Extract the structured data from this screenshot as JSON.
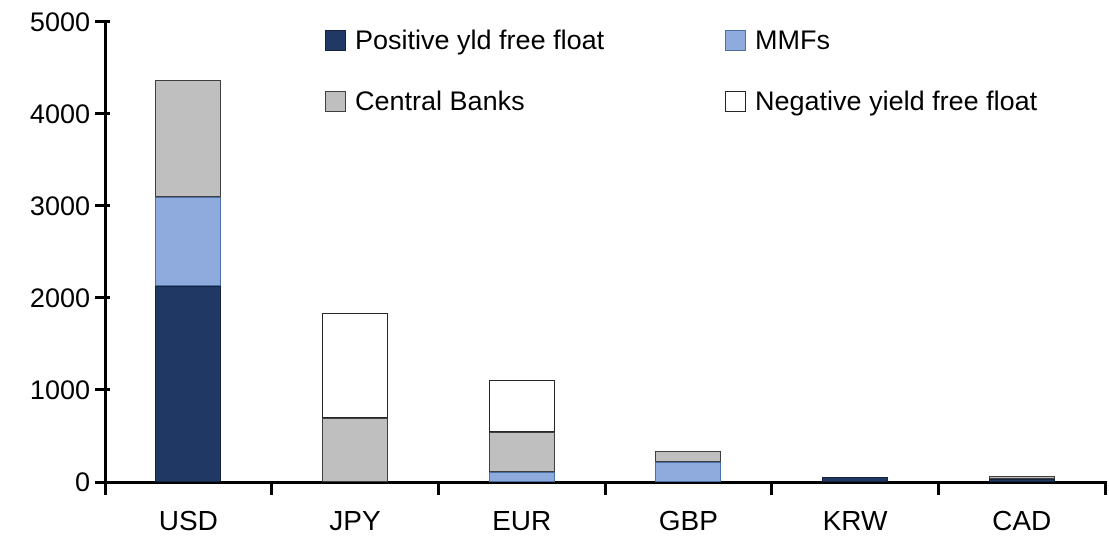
{
  "chart_data": {
    "type": "bar",
    "stacked": true,
    "title": "",
    "categories": [
      "USD",
      "JPY",
      "EUR",
      "GBP",
      "KRW",
      "CAD"
    ],
    "series": [
      {
        "name": "Positive yld free float",
        "color": "#1F3864",
        "border_color": "#14233F",
        "values": [
          2130,
          0,
          0,
          0,
          50,
          35
        ]
      },
      {
        "name": "MMFs",
        "color": "#8FAADC",
        "border_color": "#4A6FA5",
        "values": [
          960,
          0,
          110,
          220,
          0,
          0
        ]
      },
      {
        "name": "Central Banks",
        "color": "#BFBFBF",
        "border_color": "#3F3F3F",
        "values": [
          1280,
          700,
          430,
          115,
          0,
          35
        ]
      },
      {
        "name": "Negative yield free float",
        "color": "#FFFFFF",
        "border_color": "#262626",
        "values": [
          0,
          1140,
          570,
          0,
          0,
          0
        ]
      }
    ],
    "totals": [
      4370,
      1840,
      1110,
      335,
      50,
      70
    ],
    "xlabel": "",
    "ylabel": "",
    "ylim": [
      0,
      5000
    ],
    "yticks": [
      "0",
      "1000",
      "2000",
      "3000",
      "4000",
      "5000"
    ],
    "grid": false,
    "legend_position": "top",
    "legend_layout_rows": [
      [
        0,
        1
      ],
      [
        2,
        3
      ]
    ],
    "axis_color": "#000000",
    "text_color": "#000000",
    "background_color": "#FFFFFF"
  }
}
